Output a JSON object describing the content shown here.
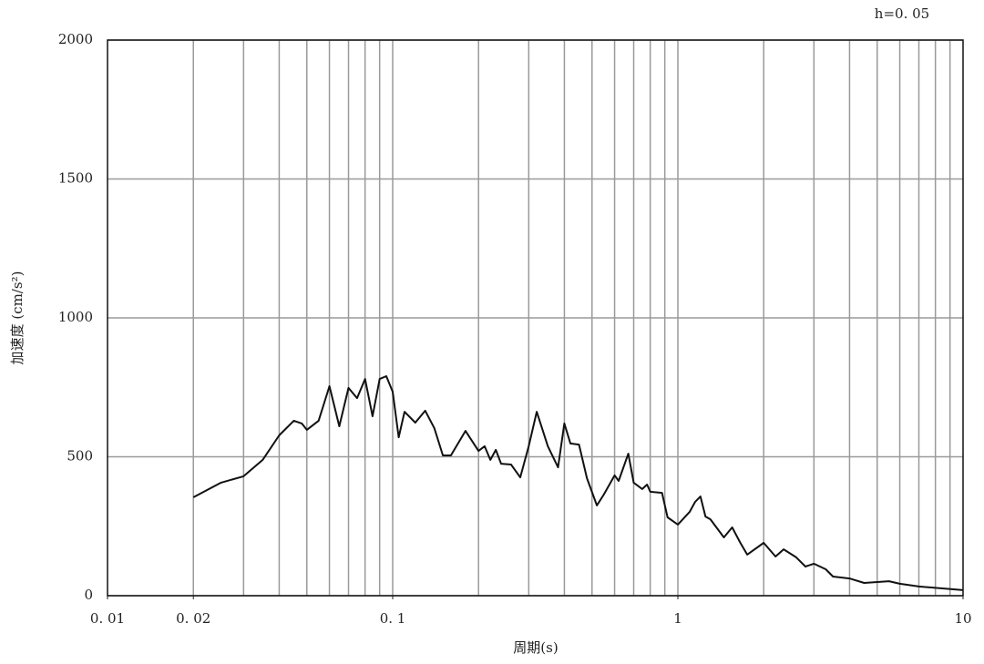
{
  "chart_data": {
    "type": "line",
    "annotation": "h=0. 05",
    "x_label": "周期(s)",
    "y_label": "加速度 (cm/s²)",
    "xscale": "log",
    "xlim": [
      0.01,
      10
    ],
    "ylim": [
      0,
      2000
    ],
    "xticks": [
      {
        "value": 0.01,
        "label": "0. 01"
      },
      {
        "value": 0.02,
        "label": "0. 02"
      },
      {
        "value": 0.1,
        "label": "0. 1"
      },
      1,
      10
    ],
    "yticks": [
      0,
      500,
      1000,
      1500,
      2000
    ],
    "x_grid": [
      0.02,
      0.03,
      0.04,
      0.05,
      0.06,
      0.07,
      0.08,
      0.09,
      0.1,
      0.2,
      0.3,
      0.4,
      0.5,
      0.6,
      0.7,
      0.8,
      0.9,
      1,
      2,
      3,
      4,
      5,
      6,
      7,
      8,
      9
    ],
    "grid": true,
    "series": [
      {
        "color": "#111111",
        "x": [
          0.02,
          0.025,
          0.03,
          0.035,
          0.04,
          0.045,
          0.048,
          0.05,
          0.055,
          0.06,
          0.065,
          0.07,
          0.075,
          0.08,
          0.085,
          0.09,
          0.095,
          0.1,
          0.105,
          0.11,
          0.12,
          0.13,
          0.14,
          0.15,
          0.16,
          0.18,
          0.2,
          0.21,
          0.22,
          0.23,
          0.24,
          0.26,
          0.28,
          0.3,
          0.32,
          0.35,
          0.38,
          0.4,
          0.42,
          0.45,
          0.48,
          0.52,
          0.55,
          0.6,
          0.62,
          0.67,
          0.7,
          0.75,
          0.78,
          0.8,
          0.88,
          0.92,
          1.0,
          1.1,
          1.15,
          1.2,
          1.25,
          1.3,
          1.45,
          1.55,
          1.65,
          1.75,
          2.0,
          2.2,
          2.35,
          2.6,
          2.8,
          3.0,
          3.3,
          3.5,
          4.0,
          4.5,
          5.5,
          6,
          7,
          10
        ],
        "values": [
          354,
          407,
          430,
          489,
          577,
          630,
          620,
          597,
          630,
          754,
          610,
          748,
          711,
          780,
          646,
          780,
          790,
          734,
          570,
          662,
          623,
          666,
          603,
          505,
          505,
          593,
          521,
          538,
          489,
          525,
          475,
          472,
          426,
          538,
          662,
          538,
          462,
          620,
          548,
          544,
          423,
          325,
          364,
          433,
          413,
          511,
          407,
          384,
          400,
          374,
          370,
          282,
          256,
          302,
          338,
          357,
          285,
          275,
          210,
          246,
          193,
          148,
          190,
          141,
          167,
          138,
          105,
          115,
          95,
          69,
          62,
          46,
          52,
          43,
          33,
          20
        ]
      }
    ]
  }
}
